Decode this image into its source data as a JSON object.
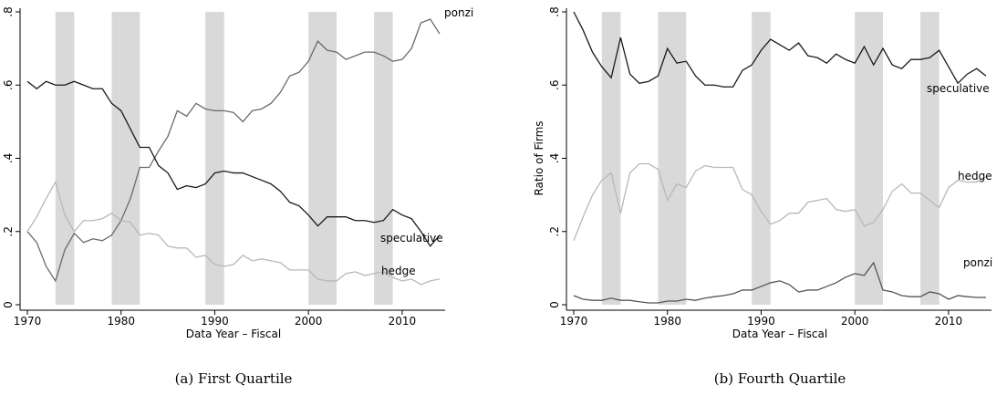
{
  "chart_data": [
    {
      "type": "line",
      "caption": "(a) First Quartile",
      "xlabel": "Data Year – Fiscal",
      "ylabel": "Ratio of Firms",
      "x": [
        1970,
        1971,
        1972,
        1973,
        1974,
        1975,
        1976,
        1977,
        1978,
        1979,
        1980,
        1981,
        1982,
        1983,
        1984,
        1985,
        1986,
        1987,
        1988,
        1989,
        1990,
        1991,
        1992,
        1993,
        1994,
        1995,
        1996,
        1997,
        1998,
        1999,
        2000,
        2001,
        2002,
        2003,
        2004,
        2005,
        2006,
        2007,
        2008,
        2009,
        2010,
        2011,
        2012,
        2013,
        2014
      ],
      "series": [
        {
          "name": "ponzi",
          "color": "#6a6a6a",
          "values": [
            0.2,
            0.17,
            0.105,
            0.065,
            0.15,
            0.195,
            0.17,
            0.18,
            0.175,
            0.19,
            0.23,
            0.29,
            0.375,
            0.375,
            0.42,
            0.46,
            0.53,
            0.515,
            0.55,
            0.535,
            0.53,
            0.53,
            0.525,
            0.5,
            0.53,
            0.535,
            0.55,
            0.58,
            0.625,
            0.635,
            0.665,
            0.72,
            0.695,
            0.69,
            0.67,
            0.68,
            0.69,
            0.69,
            0.68,
            0.665,
            0.67,
            0.7,
            0.77,
            0.78,
            0.74
          ]
        },
        {
          "name": "speculative",
          "color": "#1a1a1a",
          "values": [
            0.61,
            0.59,
            0.61,
            0.6,
            0.6,
            0.61,
            0.6,
            0.59,
            0.59,
            0.55,
            0.53,
            0.48,
            0.43,
            0.43,
            0.38,
            0.36,
            0.315,
            0.325,
            0.32,
            0.33,
            0.36,
            0.365,
            0.36,
            0.36,
            0.35,
            0.34,
            0.33,
            0.31,
            0.28,
            0.27,
            0.245,
            0.215,
            0.24,
            0.24,
            0.24,
            0.23,
            0.23,
            0.225,
            0.23,
            0.26,
            0.245,
            0.235,
            0.2,
            0.16,
            0.19
          ]
        },
        {
          "name": "hedge",
          "color": "#b8b8b8",
          "values": [
            0.2,
            0.24,
            0.29,
            0.335,
            0.245,
            0.2,
            0.23,
            0.23,
            0.235,
            0.25,
            0.23,
            0.225,
            0.19,
            0.195,
            0.19,
            0.16,
            0.155,
            0.155,
            0.13,
            0.135,
            0.11,
            0.105,
            0.11,
            0.135,
            0.12,
            0.125,
            0.12,
            0.115,
            0.095,
            0.095,
            0.095,
            0.07,
            0.065,
            0.065,
            0.085,
            0.09,
            0.08,
            0.085,
            0.09,
            0.075,
            0.065,
            0.07,
            0.055,
            0.065,
            0.07
          ]
        }
      ],
      "recessions": [
        [
          1973,
          1975
        ],
        [
          1979,
          1982
        ],
        [
          1989,
          1991
        ],
        [
          2000,
          2003
        ],
        [
          2007,
          2009
        ]
      ],
      "xlim": [
        1970,
        2014
      ],
      "xticks": [
        1970,
        1980,
        1990,
        2000,
        2010
      ],
      "ylim": [
        0,
        0.8
      ],
      "yticks": [
        0,
        {
          "value": 0.2,
          "label": ".2"
        },
        {
          "value": 0.4,
          "label": ".4"
        },
        {
          "value": 0.6,
          "label": ".6"
        },
        {
          "value": 0.8,
          "label": ".8"
        }
      ]
    },
    {
      "type": "line",
      "caption": "(b) Fourth Quartile",
      "xlabel": "Data Year – Fiscal",
      "ylabel": "Ratio of Firms",
      "x": [
        1970,
        1971,
        1972,
        1973,
        1974,
        1975,
        1976,
        1977,
        1978,
        1979,
        1980,
        1981,
        1982,
        1983,
        1984,
        1985,
        1986,
        1987,
        1988,
        1989,
        1990,
        1991,
        1992,
        1993,
        1994,
        1995,
        1996,
        1997,
        1998,
        1999,
        2000,
        2001,
        2002,
        2003,
        2004,
        2005,
        2006,
        2007,
        2008,
        2009,
        2010,
        2011,
        2012,
        2013,
        2014
      ],
      "series": [
        {
          "name": "speculative",
          "color": "#1a1a1a",
          "values": [
            0.8,
            0.75,
            0.69,
            0.65,
            0.62,
            0.73,
            0.63,
            0.605,
            0.61,
            0.625,
            0.7,
            0.66,
            0.665,
            0.625,
            0.6,
            0.6,
            0.595,
            0.595,
            0.64,
            0.655,
            0.695,
            0.725,
            0.71,
            0.695,
            0.715,
            0.68,
            0.675,
            0.66,
            0.685,
            0.67,
            0.66,
            0.705,
            0.655,
            0.7,
            0.655,
            0.645,
            0.67,
            0.67,
            0.675,
            0.695,
            0.65,
            0.605,
            0.63,
            0.645,
            0.625
          ]
        },
        {
          "name": "hedge",
          "color": "#b8b8b8",
          "values": [
            0.175,
            0.24,
            0.3,
            0.34,
            0.36,
            0.25,
            0.36,
            0.385,
            0.385,
            0.37,
            0.285,
            0.33,
            0.32,
            0.365,
            0.38,
            0.375,
            0.375,
            0.375,
            0.315,
            0.3,
            0.255,
            0.22,
            0.23,
            0.25,
            0.25,
            0.28,
            0.285,
            0.29,
            0.26,
            0.255,
            0.26,
            0.215,
            0.225,
            0.26,
            0.31,
            0.33,
            0.305,
            0.305,
            0.285,
            0.265,
            0.32,
            0.34,
            0.335,
            0.335,
            0.35
          ]
        },
        {
          "name": "ponzi",
          "color": "#555555",
          "values": [
            0.025,
            0.015,
            0.012,
            0.012,
            0.018,
            0.012,
            0.012,
            0.008,
            0.005,
            0.005,
            0.01,
            0.01,
            0.015,
            0.012,
            0.018,
            0.022,
            0.025,
            0.03,
            0.04,
            0.04,
            0.05,
            0.06,
            0.065,
            0.055,
            0.035,
            0.04,
            0.04,
            0.05,
            0.06,
            0.075,
            0.085,
            0.08,
            0.115,
            0.04,
            0.035,
            0.025,
            0.022,
            0.022,
            0.035,
            0.03,
            0.015,
            0.025,
            0.022,
            0.02,
            0.02
          ]
        }
      ],
      "recessions": [
        [
          1973,
          1975
        ],
        [
          1979,
          1982
        ],
        [
          1989,
          1991
        ],
        [
          2000,
          2003
        ],
        [
          2007,
          2009
        ]
      ],
      "xlim": [
        1970,
        2014
      ],
      "xticks": [
        1970,
        1980,
        1990,
        2000,
        2010
      ],
      "ylim": [
        0,
        0.8
      ],
      "yticks": [
        0,
        {
          "value": 0.2,
          "label": ".2"
        },
        {
          "value": 0.4,
          "label": ".4"
        },
        {
          "value": 0.6,
          "label": ".6"
        },
        {
          "value": 0.8,
          "label": ".8"
        }
      ]
    }
  ]
}
